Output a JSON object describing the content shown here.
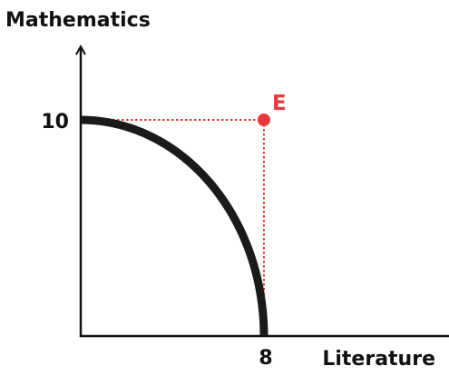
{
  "chart_data": {
    "type": "line",
    "xlabel": "Literature",
    "ylabel": "Mathematics",
    "xlim": [
      0,
      14
    ],
    "ylim": [
      0,
      13.4
    ],
    "x_ticks": [
      {
        "value": 8,
        "label": "8"
      }
    ],
    "y_ticks": [
      {
        "value": 10,
        "label": "10"
      }
    ],
    "grid": false,
    "series": [
      {
        "style": "concave-curve",
        "color": "#1a1a1a",
        "endpoints": [
          [
            0,
            10
          ],
          [
            8,
            0
          ]
        ]
      }
    ],
    "points": [
      {
        "label": "E",
        "x": 8,
        "y": 10,
        "color": "#e8383d"
      }
    ],
    "guide_lines_color": "#e8383d"
  }
}
